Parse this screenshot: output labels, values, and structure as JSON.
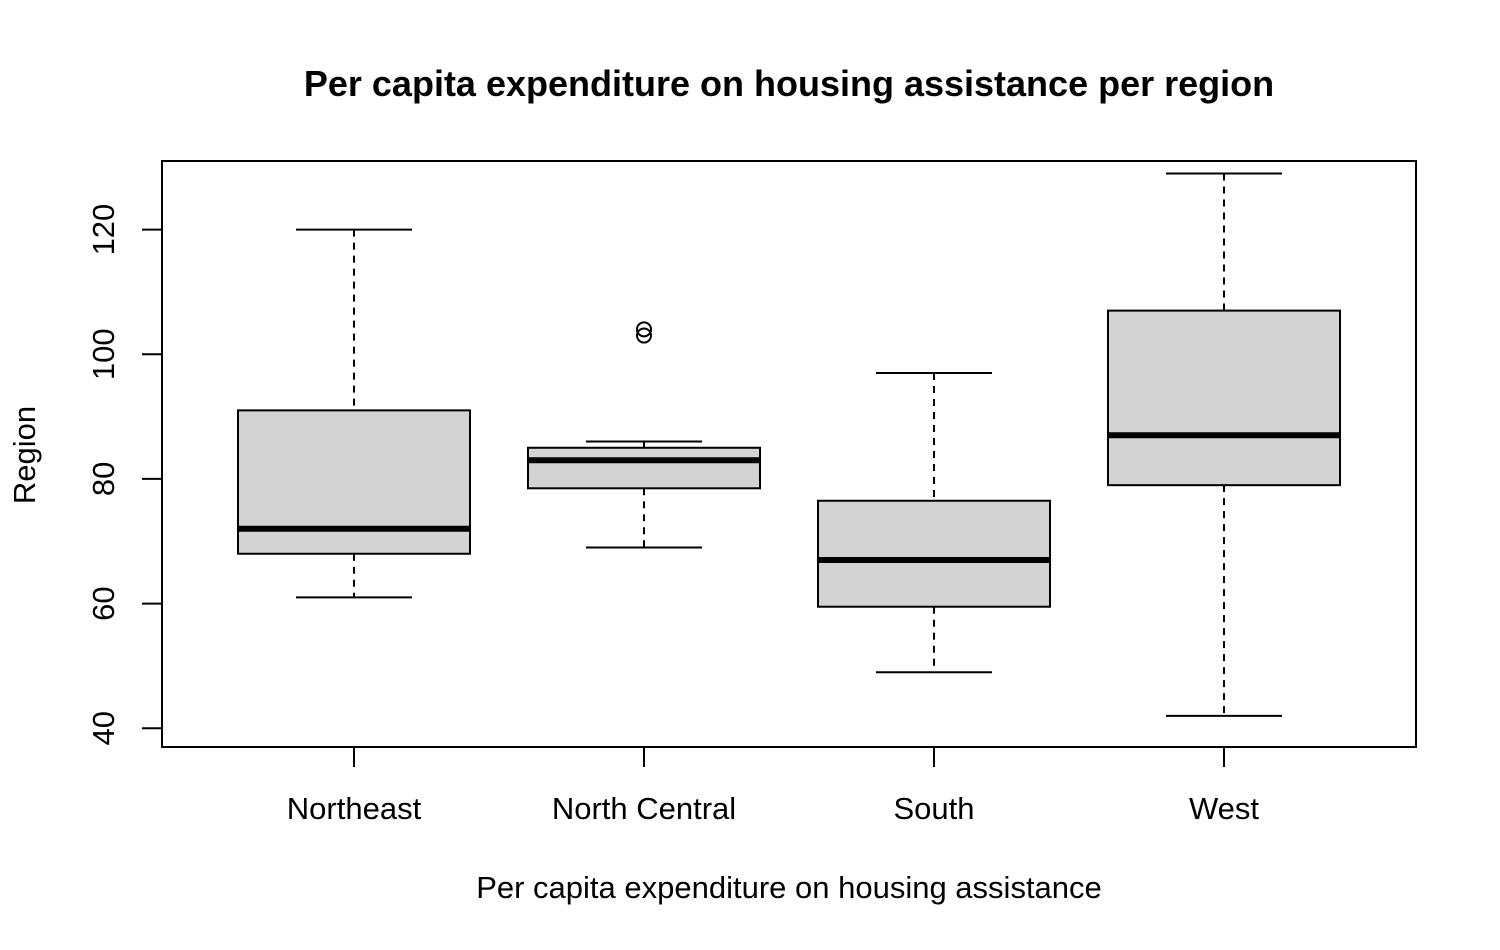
{
  "chart_data": {
    "type": "boxplot",
    "title": "Per capita expenditure on housing assistance per region",
    "xlabel": "Per capita expenditure on housing assistance",
    "ylabel": "Region",
    "categories": [
      "Northeast",
      "North Central",
      "South",
      "West"
    ],
    "y_ticks": [
      "40",
      "60",
      "80",
      "100",
      "120"
    ],
    "ylim": [
      37,
      131
    ],
    "box_fill": "#d3d3d3",
    "series": [
      {
        "category": "Northeast",
        "min": 61,
        "q1": 68,
        "median": 72,
        "q3": 91,
        "max": 120,
        "outliers": []
      },
      {
        "category": "North Central",
        "min": 69,
        "q1": 78.5,
        "median": 83,
        "q3": 85,
        "max": 86,
        "outliers": [
          103,
          104
        ]
      },
      {
        "category": "South",
        "min": 49,
        "q1": 59.5,
        "median": 67,
        "q3": 76.5,
        "max": 97,
        "outliers": []
      },
      {
        "category": "West",
        "min": 42,
        "q1": 79,
        "median": 87,
        "q3": 107,
        "max": 129,
        "outliers": []
      }
    ]
  }
}
